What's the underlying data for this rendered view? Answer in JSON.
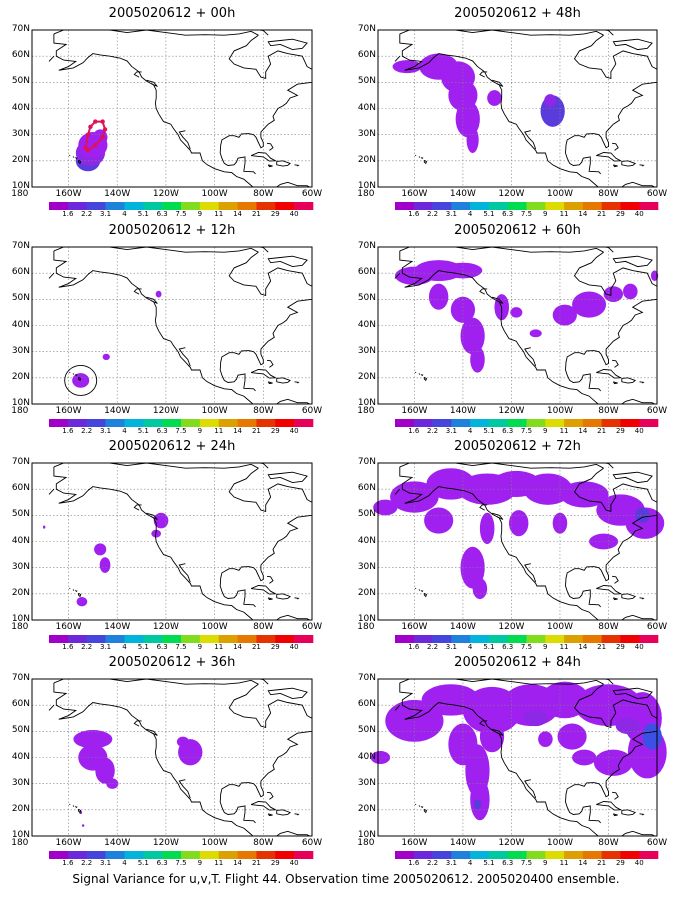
{
  "caption": "Signal Variance for u,v,T. Flight 44. Observation time 2005020612. 2005020400 ensemble.",
  "colors": {
    "fill_light": "#a020f0",
    "fill_mid": "#8c28e6",
    "fill_dark": "#5a3cdc",
    "fill_blue": "#3c50e6",
    "track": "#e0105a",
    "coast": "#000000",
    "grid": "#808080"
  },
  "colorbar": {
    "labels": [
      "1.6",
      "2.2",
      "3.1",
      "4",
      "5.1",
      "6.3",
      "7.5",
      "9",
      "11",
      "14",
      "21",
      "29",
      "40"
    ],
    "colors": [
      "#a000c8",
      "#6e28dc",
      "#4646dc",
      "#1e82dc",
      "#00b4dc",
      "#00c8a0",
      "#00dc50",
      "#82dc1e",
      "#dcdc00",
      "#dca000",
      "#e67800",
      "#e63200",
      "#f00000",
      "#e6005a"
    ]
  },
  "chart_data": [
    {
      "type": "heatmap",
      "title": "2005020612 + 00h",
      "x_ticks": [
        "180",
        "160W",
        "140W",
        "120W",
        "100W",
        "80W",
        "60W"
      ],
      "y_ticks": [
        "10N",
        "20N",
        "30N",
        "40N",
        "50N",
        "60N",
        "70N"
      ],
      "xlim_lon": [
        -175,
        -60
      ],
      "ylim_lat": [
        10,
        70
      ],
      "grid": true,
      "regions": [
        {
          "lon": -152.5,
          "lat": 22,
          "level": "4"
        }
      ],
      "track": [
        [
          -153,
          25
        ],
        [
          -152,
          30
        ],
        [
          -151,
          33
        ],
        [
          -149,
          35
        ],
        [
          -146,
          35
        ],
        [
          -145,
          32
        ],
        [
          -146,
          29
        ],
        [
          -149,
          26
        ],
        [
          -152,
          24
        ]
      ]
    },
    {
      "type": "heatmap",
      "title": "2005020612 + 12h",
      "x_ticks": [
        "180",
        "160W",
        "140W",
        "120W",
        "100W",
        "80W",
        "60W"
      ],
      "y_ticks": [
        "10N",
        "20N",
        "30N",
        "40N",
        "50N",
        "60N",
        "70N"
      ],
      "xlim_lon": [
        -175,
        -60
      ],
      "ylim_lat": [
        10,
        70
      ],
      "grid": true,
      "regions": [
        {
          "lon": -155,
          "lat": 19,
          "level": "1.6"
        },
        {
          "lon": -145,
          "lat": 28,
          "level": "1.6"
        },
        {
          "lon": -123,
          "lat": 52,
          "level": "1.6"
        }
      ]
    },
    {
      "type": "heatmap",
      "title": "2005020612 + 24h",
      "x_ticks": [
        "180",
        "160W",
        "140W",
        "120W",
        "100W",
        "80W",
        "60W"
      ],
      "y_ticks": [
        "10N",
        "20N",
        "30N",
        "40N",
        "50N",
        "60N",
        "70N"
      ],
      "xlim_lon": [
        -175,
        -60
      ],
      "ylim_lat": [
        10,
        70
      ],
      "grid": true,
      "regions": [
        {
          "lon": -154,
          "lat": 17,
          "level": "1.6"
        },
        {
          "lon": -145,
          "lat": 33,
          "level": "1.6"
        },
        {
          "lon": -122,
          "lat": 48,
          "level": "1.6"
        }
      ]
    },
    {
      "type": "heatmap",
      "title": "2005020612 + 36h",
      "x_ticks": [
        "180",
        "160W",
        "140W",
        "120W",
        "100W",
        "80W",
        "60W"
      ],
      "y_ticks": [
        "10N",
        "20N",
        "30N",
        "40N",
        "50N",
        "60N",
        "70N"
      ],
      "xlim_lon": [
        -175,
        -60
      ],
      "ylim_lat": [
        10,
        70
      ],
      "grid": true,
      "regions": [
        {
          "lon": -150,
          "lat": 40,
          "level": "1.6"
        },
        {
          "lon": -110,
          "lat": 42,
          "level": "1.6"
        }
      ]
    },
    {
      "type": "heatmap",
      "title": "2005020612 + 48h",
      "x_ticks": [
        "180",
        "160W",
        "140W",
        "120W",
        "100W",
        "80W",
        "60W"
      ],
      "y_ticks": [
        "10N",
        "20N",
        "30N",
        "40N",
        "50N",
        "60N",
        "70N"
      ],
      "xlim_lon": [
        -175,
        -60
      ],
      "ylim_lat": [
        10,
        70
      ],
      "grid": true,
      "regions": [
        {
          "lon": -145,
          "lat": 45,
          "level": "1.6"
        },
        {
          "lon": -104,
          "lat": 40,
          "level": "2.2"
        }
      ]
    },
    {
      "type": "heatmap",
      "title": "2005020612 + 60h",
      "x_ticks": [
        "180",
        "160W",
        "140W",
        "120W",
        "100W",
        "80W",
        "60W"
      ],
      "y_ticks": [
        "10N",
        "20N",
        "30N",
        "40N",
        "50N",
        "60N",
        "70N"
      ],
      "xlim_lon": [
        -175,
        -60
      ],
      "ylim_lat": [
        10,
        70
      ],
      "grid": true,
      "regions": [
        {
          "lon": -145,
          "lat": 50,
          "level": "1.6"
        },
        {
          "lon": -85,
          "lat": 48,
          "level": "1.6"
        }
      ]
    },
    {
      "type": "heatmap",
      "title": "2005020612 + 72h",
      "x_ticks": [
        "180",
        "160W",
        "140W",
        "120W",
        "100W",
        "80W",
        "60W"
      ],
      "y_ticks": [
        "10N",
        "20N",
        "30N",
        "40N",
        "50N",
        "60N",
        "70N"
      ],
      "xlim_lon": [
        -175,
        -60
      ],
      "ylim_lat": [
        10,
        70
      ],
      "grid": true,
      "regions": [
        {
          "lon": -130,
          "lat": 55,
          "level": "1.6"
        },
        {
          "lon": -68,
          "lat": 50,
          "level": "3.1"
        }
      ]
    },
    {
      "type": "heatmap",
      "title": "2005020612 + 84h",
      "x_ticks": [
        "180",
        "160W",
        "140W",
        "120W",
        "100W",
        "80W",
        "60W"
      ],
      "y_ticks": [
        "10N",
        "20N",
        "30N",
        "40N",
        "50N",
        "60N",
        "70N"
      ],
      "xlim_lon": [
        -175,
        -60
      ],
      "ylim_lat": [
        10,
        70
      ],
      "grid": true,
      "regions": [
        {
          "lon": -115,
          "lat": 55,
          "level": "1.6"
        },
        {
          "lon": -135,
          "lat": 25,
          "level": "3.1"
        },
        {
          "lon": -65,
          "lat": 48,
          "level": "3.1"
        }
      ]
    }
  ]
}
